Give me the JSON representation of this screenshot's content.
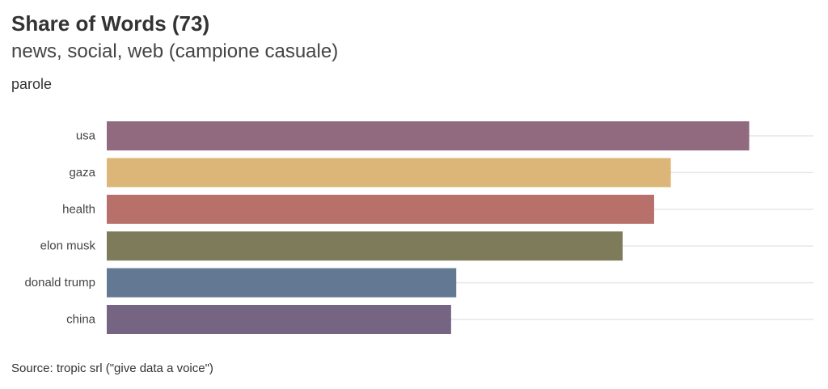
{
  "title": "Share of Words (73)",
  "subtitle": "news, social, web (campione casuale)",
  "unit_label": "parole",
  "caption": "Source: tropic srl (\"give data a voice\")",
  "chart_data": {
    "type": "bar",
    "orientation": "horizontal",
    "title": "Share of Words (73)",
    "subtitle": "news, social, web (campione casuale)",
    "ylabel": "parole",
    "xlabel": "",
    "categories": [
      "usa",
      "gaza",
      "health",
      "elon musk",
      "donald trump",
      "china"
    ],
    "values": [
      100,
      87.8,
      85.2,
      80.3,
      54.4,
      53.6
    ],
    "colors": [
      "#916a80",
      "#dcb678",
      "#b7706a",
      "#7d7b59",
      "#637892",
      "#756583"
    ],
    "xlim": [
      0,
      110
    ],
    "grid": true,
    "legend": "none",
    "x_tick_labels": "none"
  }
}
